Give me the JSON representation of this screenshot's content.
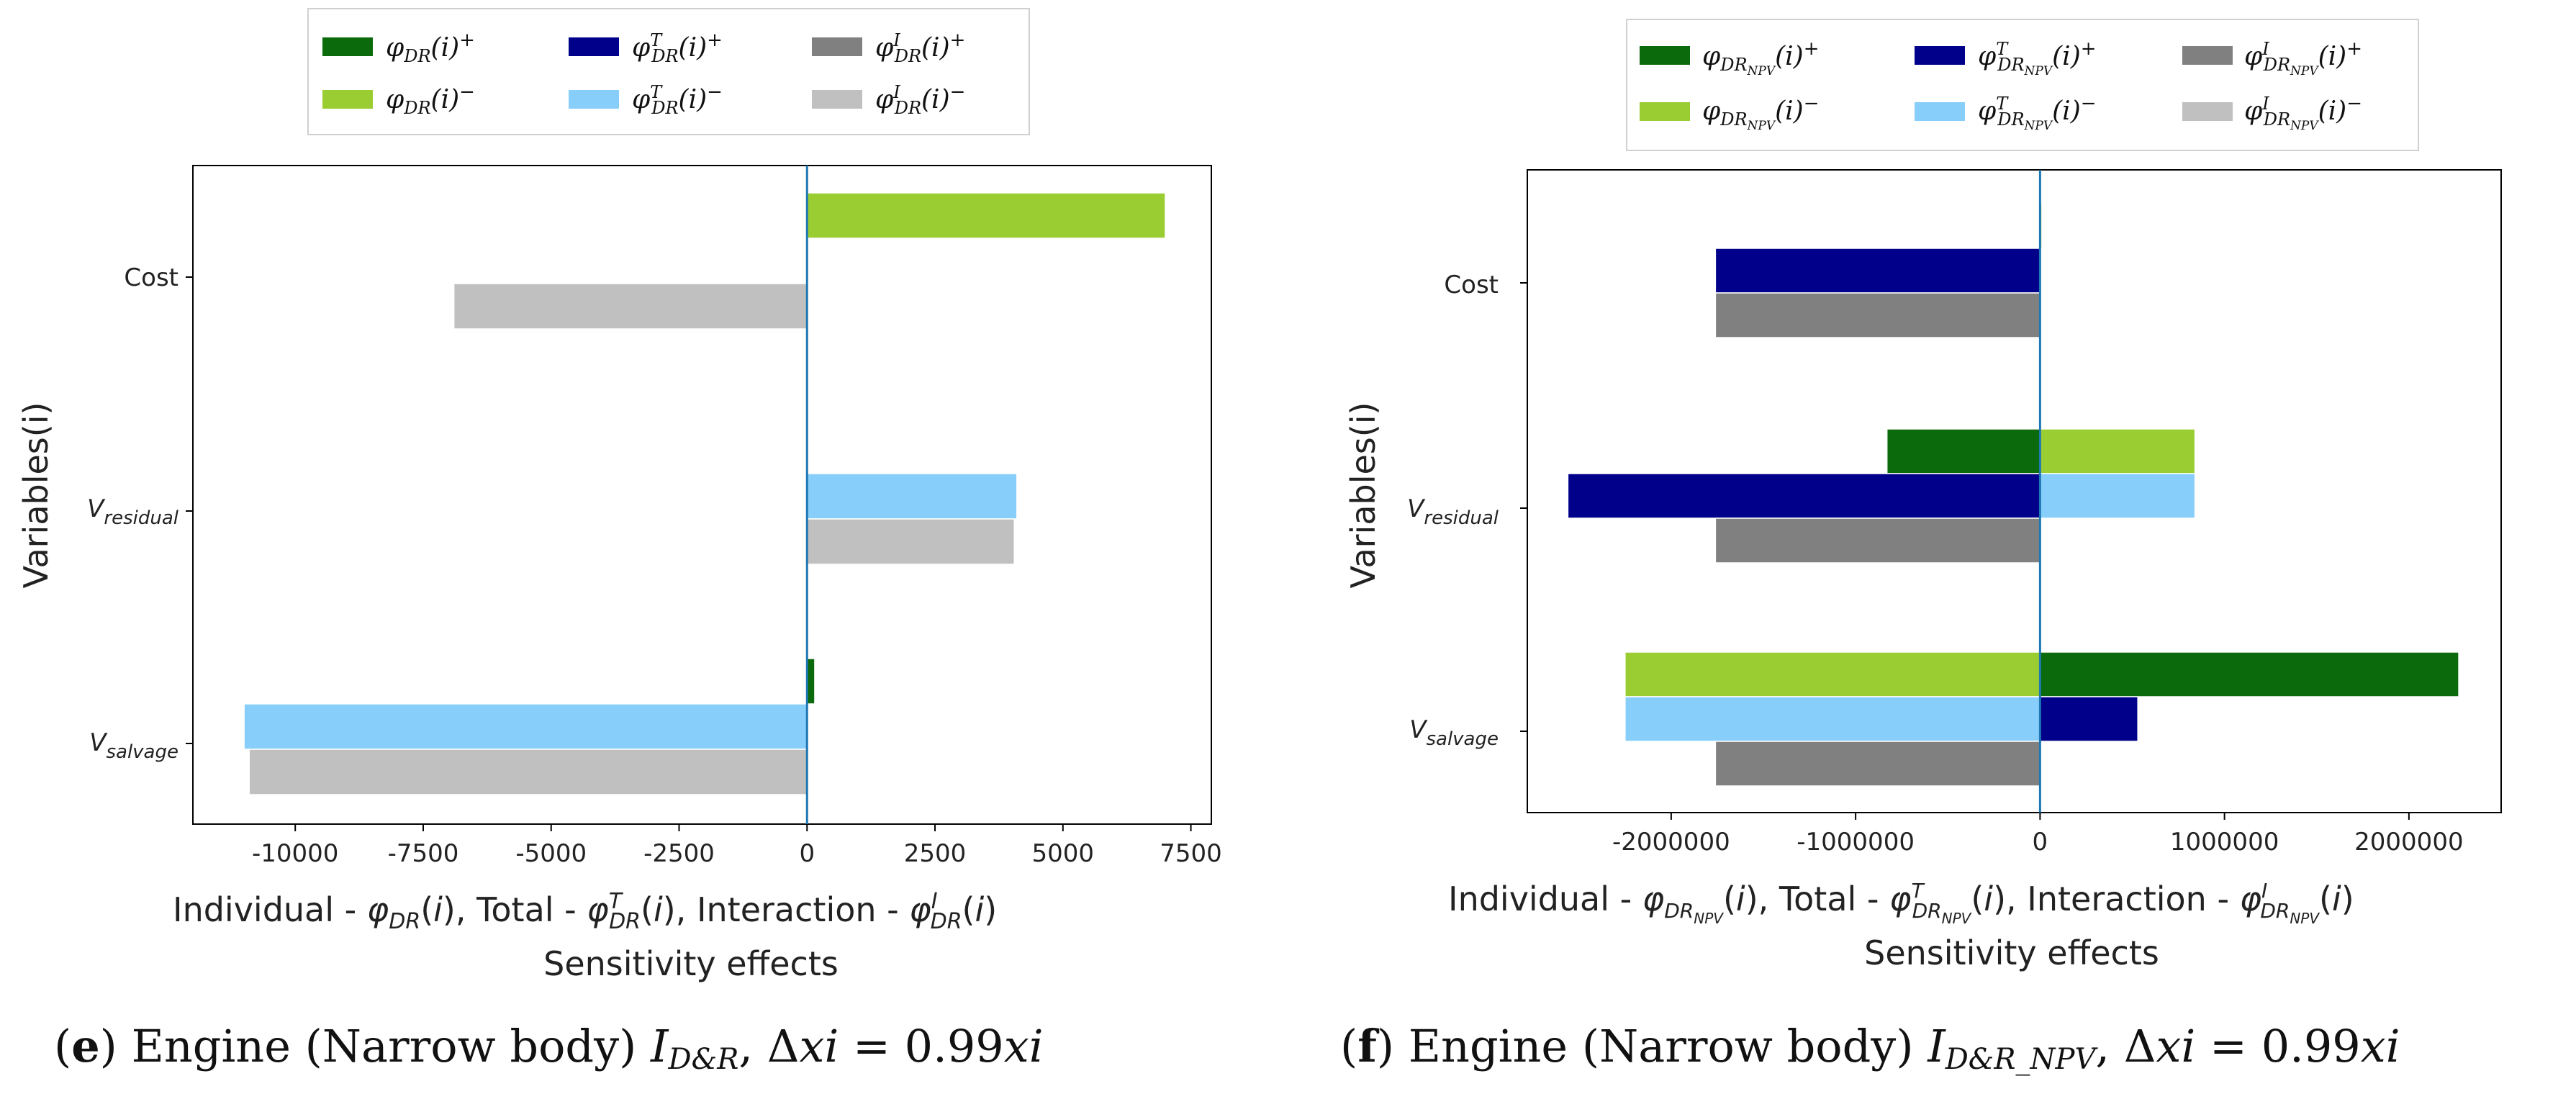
{
  "colors": {
    "ind_pos": "#0b6a0b",
    "ind_neg": "#9acd32",
    "tot_pos": "#00008b",
    "tot_neg": "#87cefa",
    "int_pos": "#808080",
    "int_neg": "#c0c0c0",
    "vline": "#1f77b4"
  },
  "chart_data": [
    {
      "type": "bar",
      "orientation": "horizontal",
      "categories": [
        "Cost",
        "V_residual",
        "V_salvage"
      ],
      "category_labels": [
        "Cost",
        "V",
        "V"
      ],
      "category_subscripts": [
        "",
        "residual",
        "salvage"
      ],
      "series": [
        {
          "name": "φ_DR(i)+",
          "values": [
            60,
            0,
            150
          ]
        },
        {
          "name": "φ_DR(i)−",
          "values": [
            7000,
            0,
            0
          ]
        },
        {
          "name": "φ^T_DR(i)+",
          "values": [
            0,
            0,
            0
          ]
        },
        {
          "name": "φ^T_DR(i)−",
          "values": [
            0,
            4100,
            -11000
          ]
        },
        {
          "name": "φ^I_DR(i)+",
          "values": [
            0,
            0,
            0
          ]
        },
        {
          "name": "φ^I_DR(i)−",
          "values": [
            -6900,
            4050,
            -10900
          ]
        }
      ],
      "legend": [
        "φDR(i)+",
        "φDR(i)−",
        "φTDR(i)+",
        "φTDR(i)−",
        "φIDR(i)+",
        "φIDR(i)−"
      ],
      "xlim": [
        -12000,
        7900
      ],
      "xticks": [
        -10000,
        -7500,
        -5000,
        -2500,
        0,
        2500,
        5000,
        7500
      ],
      "xtick_labels": [
        "-10000",
        "-7500",
        "-5000",
        "-2500",
        "0",
        "2500",
        "5000",
        "7500"
      ],
      "ylabel": "Variables(i)",
      "xlabel_line1": "Individual - φDR(i),  Total - φTDR(i),  Interaction - φIDR(i)",
      "xlabel_line2": "Sensitivity effects",
      "caption": {
        "letter": "e",
        "text": " Engine (Narrow body) ",
        "index": "ID&R",
        "delta": ", Δxi = 0.99xi"
      }
    },
    {
      "type": "bar",
      "orientation": "horizontal",
      "categories": [
        "Cost",
        "V_residual",
        "V_salvage"
      ],
      "category_labels": [
        "Cost",
        "V",
        "V"
      ],
      "category_subscripts": [
        "",
        "residual",
        "salvage"
      ],
      "series": [
        {
          "name": "φ_DRNPV(i)+",
          "values": [
            0,
            -830000,
            2270000
          ]
        },
        {
          "name": "φ_DRNPV(i)−",
          "values": [
            10000,
            840000,
            -2250000
          ]
        },
        {
          "name": "φ^T_DRNPV(i)+",
          "values": [
            -1760000,
            -2560000,
            530000
          ]
        },
        {
          "name": "φ^T_DRNPV(i)−",
          "values": [
            0,
            840000,
            -2250000
          ]
        },
        {
          "name": "φ^I_DRNPV(i)+",
          "values": [
            -1760000,
            -1760000,
            -1760000
          ]
        },
        {
          "name": "φ^I_DRNPV(i)−",
          "values": [
            0,
            0,
            0
          ]
        }
      ],
      "legend": [
        "φDRNPV(i)+",
        "φDRNPV(i)−",
        "φTDRNPV(i)+",
        "φTDRNPV(i)−",
        "φIDRNPV(i)+",
        "φIDRNPV(i)−"
      ],
      "xlim": [
        -2780000,
        2500000
      ],
      "xticks": [
        -2000000,
        -1000000,
        0,
        1000000,
        2000000
      ],
      "xtick_labels": [
        "-2000000",
        "-1000000",
        "0",
        "1000000",
        "2000000"
      ],
      "ylabel": "Variables(i)",
      "xlabel_line1": "Individual - φDRNPV(i), Total - φTDRNPV(i), Interaction - φIDRNPV(i)",
      "xlabel_line2": "Sensitivity effects",
      "caption": {
        "letter": "f",
        "text": " Engine (Narrow body) ",
        "index": "ID&R_NPV",
        "delta": ", Δxi = 0.99xi"
      }
    }
  ]
}
